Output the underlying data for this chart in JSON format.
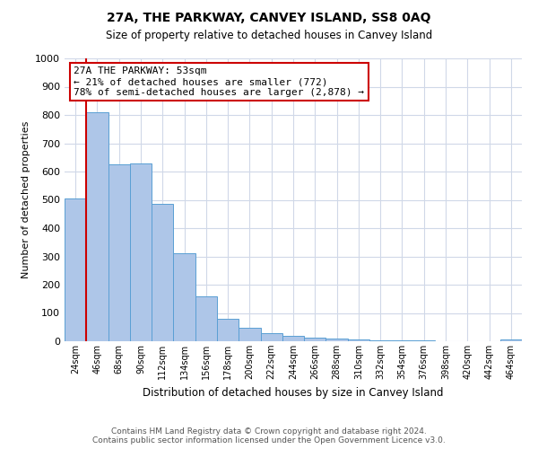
{
  "title": "27A, THE PARKWAY, CANVEY ISLAND, SS8 0AQ",
  "subtitle": "Size of property relative to detached houses in Canvey Island",
  "xlabel": "Distribution of detached houses by size in Canvey Island",
  "ylabel": "Number of detached properties",
  "bin_labels": [
    "24sqm",
    "46sqm",
    "68sqm",
    "90sqm",
    "112sqm",
    "134sqm",
    "156sqm",
    "178sqm",
    "200sqm",
    "222sqm",
    "244sqm",
    "266sqm",
    "288sqm",
    "310sqm",
    "332sqm",
    "354sqm",
    "376sqm",
    "398sqm",
    "420sqm",
    "442sqm",
    "464sqm"
  ],
  "bar_values": [
    505,
    810,
    625,
    630,
    485,
    310,
    160,
    78,
    47,
    27,
    20,
    13,
    8,
    5,
    4,
    3,
    2,
    1,
    0,
    0,
    5
  ],
  "bar_color": "#aec6e8",
  "bar_edge_color": "#5a9fd4",
  "vline_x": 1,
  "vline_color": "#cc0000",
  "annotation_title": "27A THE PARKWAY: 53sqm",
  "annotation_line1": "← 21% of detached houses are smaller (772)",
  "annotation_line2": "78% of semi-detached houses are larger (2,878) →",
  "annotation_box_color": "#ffffff",
  "annotation_box_edge": "#cc0000",
  "ylim": [
    0,
    1000
  ],
  "yticks": [
    0,
    100,
    200,
    300,
    400,
    500,
    600,
    700,
    800,
    900,
    1000
  ],
  "footer1": "Contains HM Land Registry data © Crown copyright and database right 2024.",
  "footer2": "Contains public sector information licensed under the Open Government Licence v3.0.",
  "bg_color": "#ffffff",
  "grid_color": "#d0d8e8"
}
